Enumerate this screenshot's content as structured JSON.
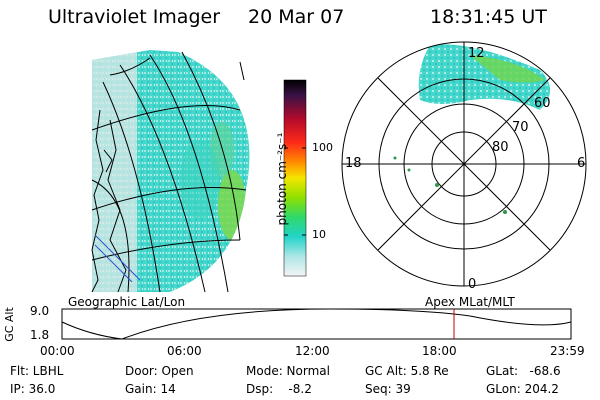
{
  "header": {
    "instrument": "Ultraviolet Imager",
    "date": "20 Mar 07",
    "time": "18:31:45 UT"
  },
  "colorbar": {
    "unit_label": "photon cm⁻²s⁻¹",
    "ticks": [
      "100",
      "10"
    ]
  },
  "polar": {
    "lat_labels": [
      "60",
      "70",
      "80"
    ],
    "mlt_labels": {
      "top": "12",
      "left": "18",
      "right": "6",
      "bottom": "0"
    }
  },
  "map_labels": {
    "geographic": "Geographic Lat/Lon",
    "apex": "Apex MLat/MLT"
  },
  "timeline": {
    "axis_label": "GC Alt",
    "y_ticks": [
      "9.0",
      "1.8"
    ],
    "x_ticks": [
      "00:00",
      "06:00",
      "12:00",
      "18:00",
      "23:59"
    ],
    "marker_time": "18:31"
  },
  "info": {
    "filter": "Flt: LBHL",
    "ip": "IP: 36.0",
    "door": "Door: Open",
    "gain": "Gain: 14",
    "mode": "Mode: Normal",
    "dsp": "Dsp:    -8.2",
    "gc_alt": "GC Alt: 5.8 Re",
    "seq": "Seq: 39",
    "glat": "GLat:   -68.6",
    "glon": "GLon: 204.2"
  },
  "colors": {
    "aurora_cyan": "#3fd6c8",
    "aurora_green": "#6fd84a",
    "marker": "#c00000"
  }
}
